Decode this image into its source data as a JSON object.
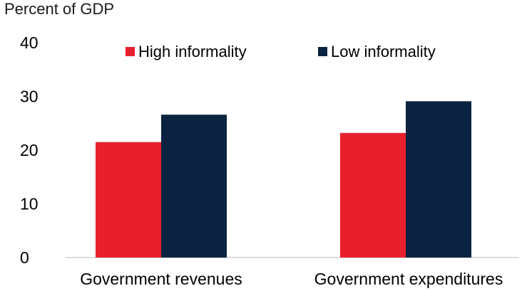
{
  "chart_data": {
    "type": "bar",
    "ylabel": "Percent of GDP",
    "categories": [
      "Government revenues",
      "Government expenditures"
    ],
    "series": [
      {
        "name": "High informality",
        "values": [
          21.5,
          23.2
        ],
        "color": "#e8202e"
      },
      {
        "name": "Low informality",
        "values": [
          26.6,
          29.1
        ],
        "color": "#0b2340"
      }
    ],
    "ylim": [
      0,
      40
    ],
    "yticks": [
      0,
      10,
      20,
      30,
      40
    ],
    "grid": false,
    "legend": "top"
  }
}
